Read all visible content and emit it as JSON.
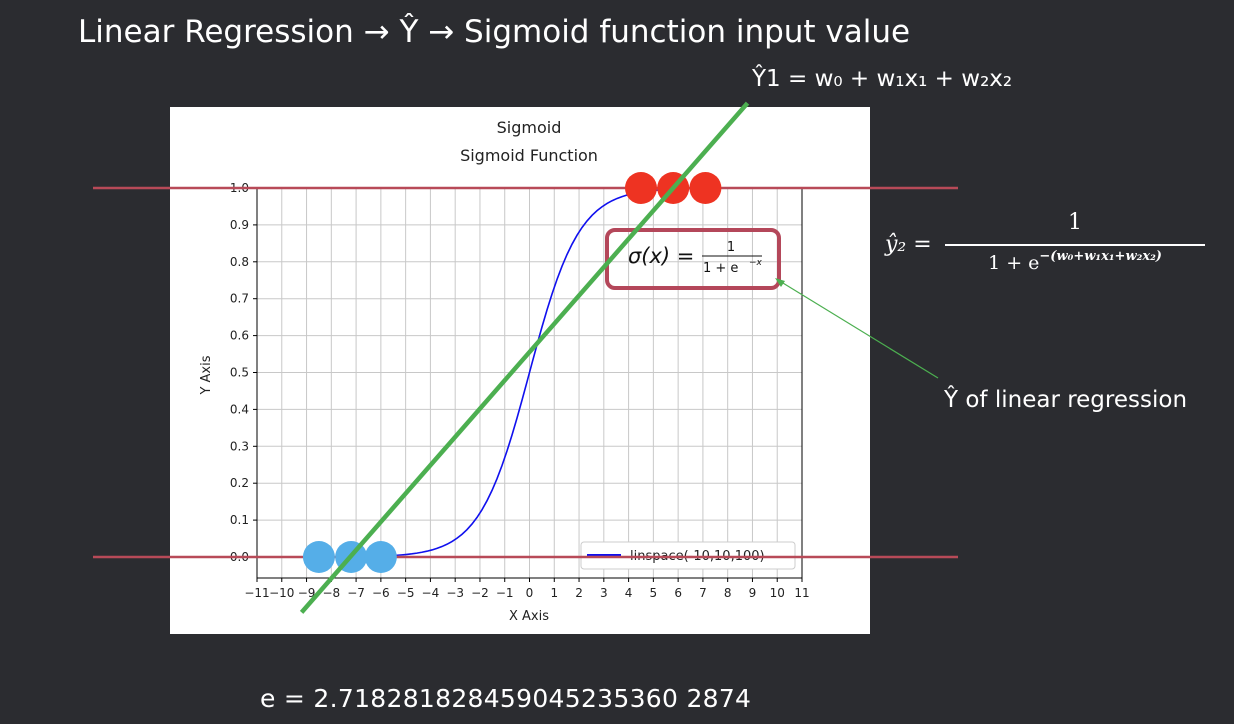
{
  "slide": {
    "title": "Linear Regression → Ŷ → Sigmoid function input value",
    "equation_y1": "Ŷ1 = w₀ + w₁x₁ + w₂x₂",
    "equation_y2": {
      "lhs": "ŷ₂ =",
      "numerator": "1",
      "denominator_base": "1 + e",
      "denominator_exponent": "−(w₀+w₁x₁+w₂x₂)"
    },
    "annotation": "Ŷ of linear regression",
    "e_value": "e = 2.718281828459045235360 2874"
  },
  "chart_data": {
    "type": "line",
    "title": "Sigmoid",
    "subtitle": "Sigmoid Function",
    "xlabel": "X Axis",
    "ylabel": "Y Axis",
    "xlim": [
      -11,
      11
    ],
    "ylim": [
      0,
      1
    ],
    "x_ticks": [
      "−11",
      "−10",
      "−9",
      "−8",
      "−7",
      "−6",
      "−5",
      "−4",
      "−3",
      "−2",
      "−1",
      "0",
      "1",
      "2",
      "3",
      "4",
      "5",
      "6",
      "7",
      "8",
      "9",
      "10",
      "11"
    ],
    "y_ticks": [
      "0.0",
      "0.1",
      "0.2",
      "0.3",
      "0.4",
      "0.5",
      "0.6",
      "0.7",
      "0.8",
      "0.9",
      "1.0"
    ],
    "grid": true,
    "legend": {
      "position": "lower-right",
      "entry": "linspace(-10,10,100)"
    },
    "formula_box": {
      "lhs": "σ(x) =",
      "numerator": "1",
      "denominator": "1 + e",
      "exponent": "−x"
    },
    "series": [
      {
        "name": "linspace(-10,10,100)",
        "function": "sigmoid",
        "x_range": [
          -10,
          10
        ],
        "points": 100,
        "color": "#1010ee"
      }
    ],
    "regression_line": {
      "color": "#4caf50",
      "points": [
        [
          -9.2,
          -0.15
        ],
        [
          8.8,
          1.23
        ]
      ]
    },
    "thresholds": {
      "color": "#b84a58",
      "values": [
        0,
        1
      ]
    },
    "class_0_points": {
      "color": "#55aee8",
      "x": [
        -8.5,
        -7.2,
        -6.0
      ],
      "y": 0
    },
    "class_1_points": {
      "color": "#ee3322",
      "x": [
        4.5,
        5.8,
        7.1
      ],
      "y": 1
    }
  },
  "colors": {
    "background": "#2b2c30",
    "box_outline": "#b4475a",
    "annotation_arrow": "#4caf50"
  }
}
